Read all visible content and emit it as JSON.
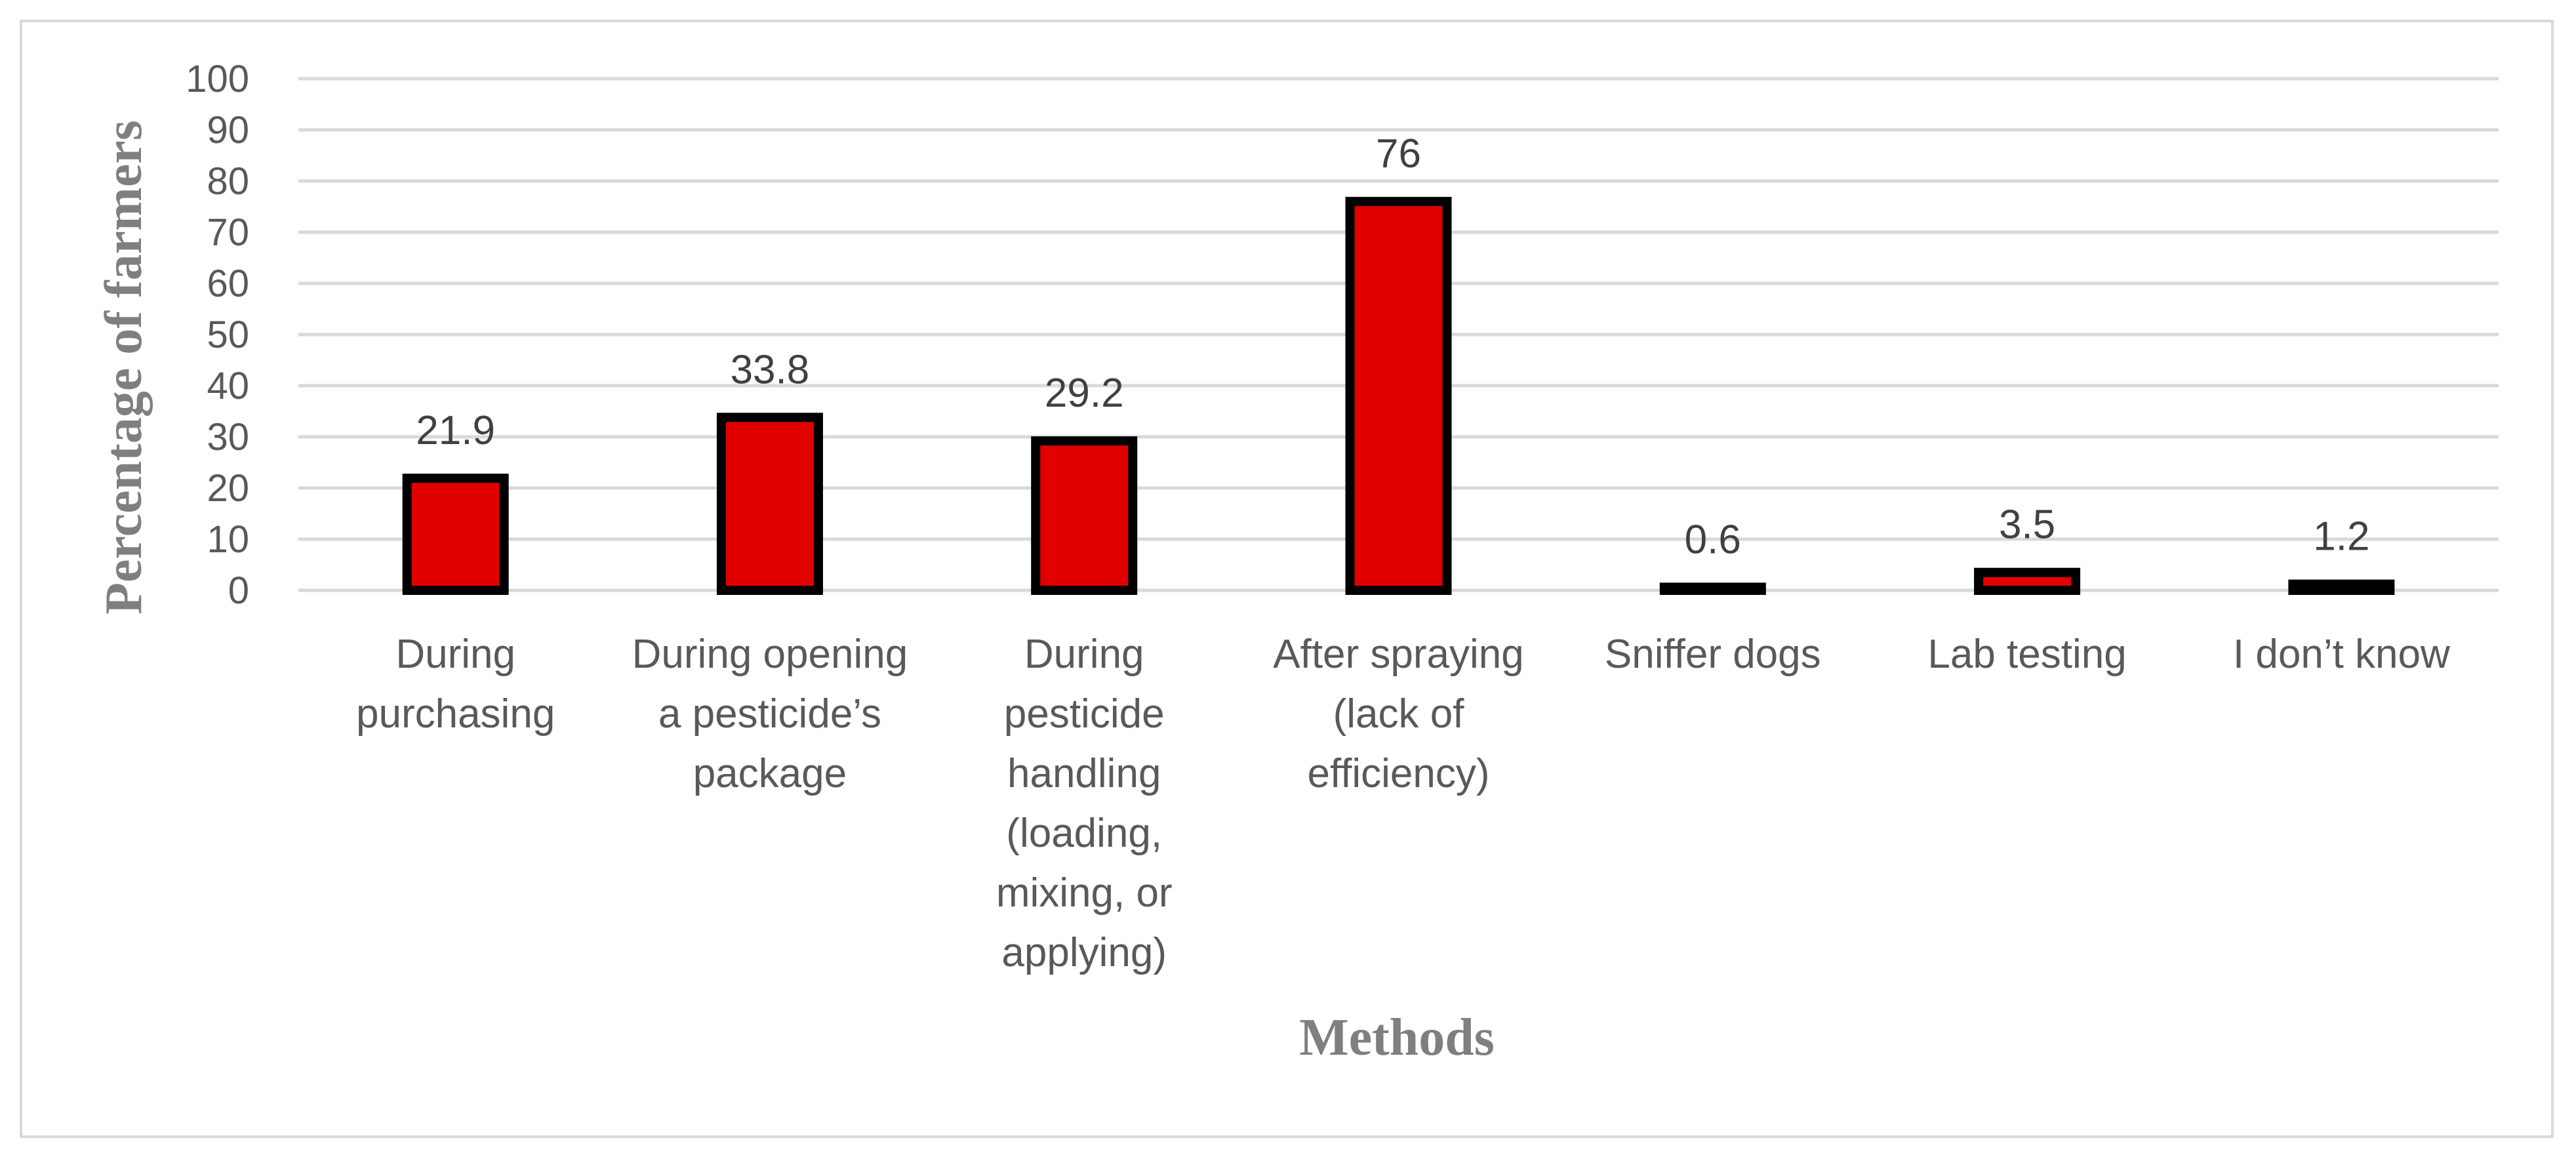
{
  "chart_data": {
    "type": "bar",
    "categories": [
      [
        "During",
        "purchasing"
      ],
      [
        "During opening",
        "a pesticide’s",
        "package"
      ],
      [
        "During",
        "pesticide",
        "handling",
        "(loading,",
        "mixing, or",
        "applying)"
      ],
      [
        "After spraying",
        "(lack of",
        "efficiency)"
      ],
      [
        "Sniffer dogs"
      ],
      [
        "Lab testing"
      ],
      [
        "I don’t know"
      ]
    ],
    "values": [
      21.9,
      33.8,
      29.2,
      76,
      0.6,
      3.5,
      1.2
    ],
    "value_labels": [
      "21.9",
      "33.8",
      "29.2",
      "76",
      "0.6",
      "3.5",
      "1.2"
    ],
    "xlabel": "Methods",
    "ylabel": "Percentage of farmers",
    "ylim": [
      0,
      100
    ],
    "yticks": [
      0,
      10,
      20,
      30,
      40,
      50,
      60,
      70,
      80,
      90,
      100
    ],
    "grid": true,
    "bar_color": "#e00000",
    "bar_edge_color": "#000000",
    "grid_color": "#d9d9d9"
  }
}
